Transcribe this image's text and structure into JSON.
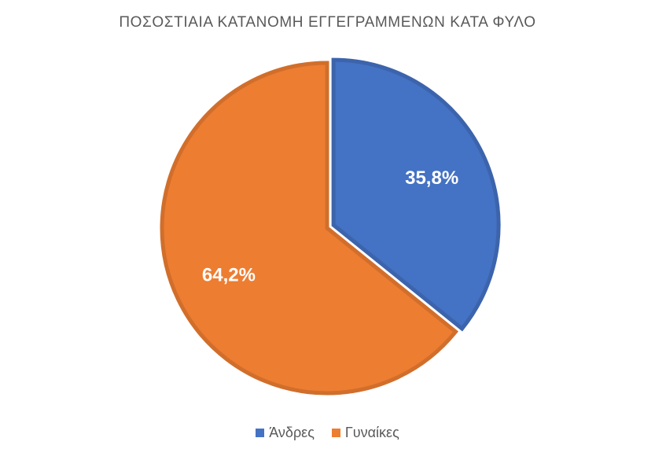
{
  "chart_data": {
    "type": "pie",
    "title": "ΠΟΣΟΣΤΙΑΙΑ ΚΑΤΑΝΟΜΗ ΕΓΓΕΓΡΑΜΜΕΝΩΝ  ΚΑΤΑ ΦΥΛΟ",
    "slices": [
      {
        "label": "Άνδρες",
        "value": 35.8,
        "data_label": "35,8%",
        "color": "#4472C4",
        "exploded": true
      },
      {
        "label": "Γυναίκες",
        "value": 64.2,
        "data_label": "64,2%",
        "color": "#ED7D31",
        "exploded": false
      }
    ],
    "legend_position": "bottom"
  }
}
